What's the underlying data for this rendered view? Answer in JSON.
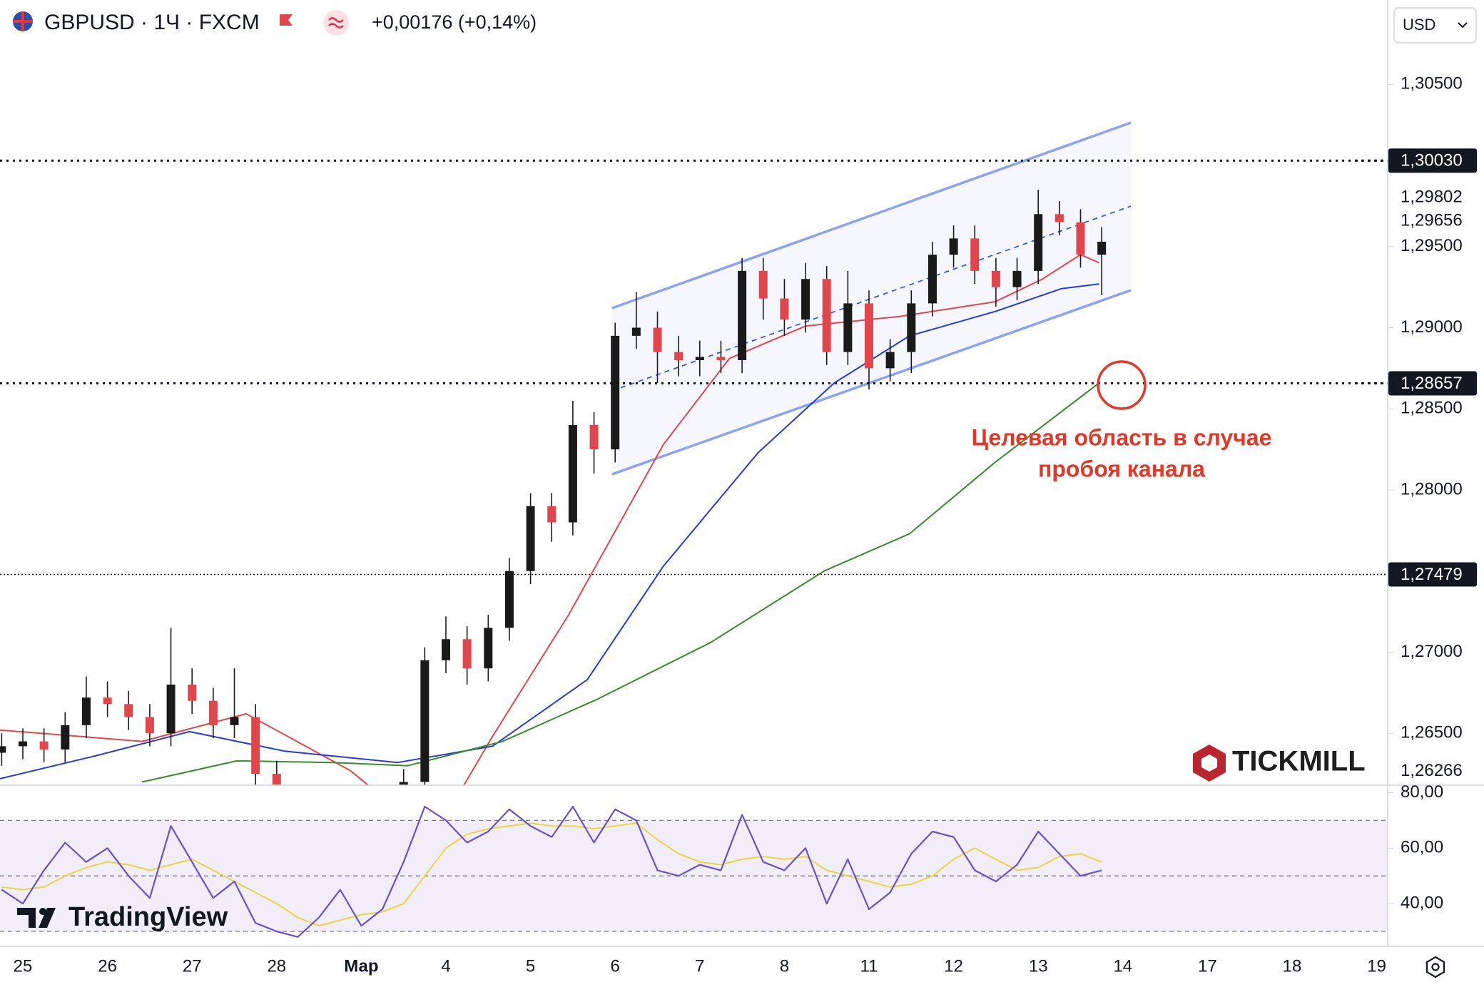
{
  "chart_data": {
    "type": "candlestick",
    "title": "GBPUSD · 1Ч · FXCM",
    "subtitle": "+0,00176 (+0,14%)",
    "currency": "USD",
    "annotation": [
      "Целевая область в случае",
      "пробоя канала"
    ],
    "watermarks": [
      "TradingView",
      "TICKMILL"
    ],
    "categories": [
      "25",
      "26",
      "27",
      "28",
      "Мар",
      "4",
      "5",
      "6",
      "7",
      "8",
      "11",
      "12",
      "13",
      "14",
      "17",
      "18",
      "19"
    ],
    "ylim": [
      1.2618,
      1.3102
    ],
    "yticks": [
      {
        "value": 1.305,
        "label": "1,30500"
      },
      {
        "value": 1.295,
        "label": "1,29500"
      },
      {
        "value": 1.29,
        "label": "1,29000"
      },
      {
        "value": 1.285,
        "label": "1,28500"
      },
      {
        "value": 1.28,
        "label": "1,28000"
      },
      {
        "value": 1.27,
        "label": "1,27000"
      },
      {
        "value": 1.265,
        "label": "1,26500"
      }
    ],
    "grid": false,
    "price_labels": [
      {
        "value": 1.29802,
        "label": "1,29802"
      },
      {
        "value": 1.29656,
        "label": "1,29656"
      },
      {
        "value": 1.26266,
        "label": "1,26266"
      }
    ],
    "levels": [
      {
        "value": 1.3003,
        "label": "1,30030"
      },
      {
        "value": 1.28657,
        "label": "1,28657"
      },
      {
        "value": 1.27479,
        "label": "1,27479"
      }
    ],
    "up_color": "#1a1a1a",
    "down_color": "#e0474c",
    "candles": {
      "x": [
        -0.25,
        0,
        0.25,
        0.5,
        0.75,
        1,
        1.25,
        1.5,
        1.75,
        2,
        2.25,
        2.5,
        2.75,
        3,
        3.25,
        3.5,
        3.75,
        4,
        4.25,
        4.5,
        4.75,
        5,
        5.25,
        5.5,
        5.75,
        6,
        6.25,
        6.5,
        6.75,
        7,
        7.25,
        7.5,
        7.75,
        8,
        8.25,
        8.5,
        8.75,
        9,
        9.25,
        9.5,
        9.75,
        10,
        10.25,
        10.5,
        10.75,
        11,
        11.25,
        11.5,
        11.75,
        12,
        12.25,
        12.5,
        12.75
      ],
      "open": [
        1.2638,
        1.2642,
        1.2645,
        1.264,
        1.2655,
        1.2672,
        1.2668,
        1.266,
        1.265,
        1.268,
        1.267,
        1.2655,
        1.266,
        1.2625,
        1.2605,
        1.2595,
        1.259,
        1.2588,
        1.2592,
        1.2598,
        1.262,
        1.2695,
        1.2708,
        1.269,
        1.2715,
        1.275,
        1.279,
        1.278,
        1.284,
        1.2825,
        1.2895,
        1.29,
        1.2885,
        1.288,
        1.2882,
        1.288,
        1.2935,
        1.2918,
        1.2905,
        1.293,
        1.2885,
        1.2915,
        1.2875,
        1.2885,
        1.2915,
        1.2945,
        1.2955,
        1.2935,
        1.2925,
        1.2935,
        1.297,
        1.2965,
        1.2945
      ],
      "high": [
        1.265,
        1.2653,
        1.2653,
        1.2663,
        1.2685,
        1.2682,
        1.2676,
        1.2668,
        1.2715,
        1.269,
        1.2678,
        1.269,
        1.2668,
        1.2633,
        1.2613,
        1.2603,
        1.2598,
        1.26,
        1.2606,
        1.2628,
        1.2703,
        1.2722,
        1.2716,
        1.2723,
        1.2758,
        1.2798,
        1.2798,
        1.2855,
        1.2848,
        1.2903,
        1.2922,
        1.291,
        1.2895,
        1.2892,
        1.2892,
        1.2943,
        1.2943,
        1.293,
        1.294,
        1.2938,
        1.2935,
        1.2923,
        1.2893,
        1.2923,
        1.2953,
        1.2963,
        1.2963,
        1.2943,
        1.2943,
        1.2985,
        1.2978,
        1.2973,
        1.2962
      ],
      "low": [
        1.263,
        1.2634,
        1.2632,
        1.2632,
        1.2647,
        1.266,
        1.2652,
        1.2642,
        1.2642,
        1.2662,
        1.2647,
        1.2647,
        1.2617,
        1.2597,
        1.2587,
        1.2582,
        1.258,
        1.258,
        1.2584,
        1.259,
        1.2612,
        1.2687,
        1.268,
        1.2682,
        1.2707,
        1.2742,
        1.2768,
        1.2772,
        1.281,
        1.2817,
        1.2887,
        1.2866,
        1.287,
        1.287,
        1.2872,
        1.2872,
        1.2905,
        1.2895,
        1.2897,
        1.2877,
        1.2877,
        1.2862,
        1.2867,
        1.2872,
        1.2907,
        1.2937,
        1.2927,
        1.2913,
        1.2917,
        1.2927,
        1.2957,
        1.2937,
        1.292
      ],
      "close": [
        1.2642,
        1.2645,
        1.264,
        1.2655,
        1.2672,
        1.2668,
        1.266,
        1.265,
        1.268,
        1.267,
        1.2655,
        1.266,
        1.2625,
        1.2605,
        1.2595,
        1.259,
        1.2588,
        1.2592,
        1.2598,
        1.262,
        1.2695,
        1.2708,
        1.269,
        1.2715,
        1.275,
        1.279,
        1.278,
        1.284,
        1.2825,
        1.2895,
        1.29,
        1.2885,
        1.288,
        1.2882,
        1.288,
        1.2935,
        1.2918,
        1.2905,
        1.293,
        1.2885,
        1.2915,
        1.2875,
        1.2885,
        1.2915,
        1.2945,
        1.2955,
        1.2935,
        1.2925,
        1.2935,
        1.297,
        1.2965,
        1.2945,
        1.2953
      ]
    },
    "series": [
      {
        "color": "#e0474c",
        "x": [
          -0.27,
          1.41,
          2.64,
          3.87,
          4.5,
          5.1,
          5.55,
          6.45,
          7.57,
          8.35,
          9.25,
          10.37,
          11.49,
          12.05,
          12.5,
          12.72
        ],
        "values": [
          1.2652,
          1.2645,
          1.2662,
          1.2627,
          1.26,
          1.2608,
          1.2648,
          1.2723,
          1.2828,
          1.2881,
          1.2901,
          1.2907,
          1.2916,
          1.293,
          1.2945,
          1.294
        ]
      },
      {
        "color": "#2a3ad8",
        "x": [
          -0.27,
          0.85,
          1.97,
          3.09,
          4.43,
          5.55,
          6.67,
          7.57,
          8.69,
          9.59,
          10.48,
          11.49,
          12.27,
          12.72
        ],
        "values": [
          1.2622,
          1.2636,
          1.2651,
          1.2639,
          1.2632,
          1.2642,
          1.2683,
          1.2753,
          1.2823,
          1.2866,
          1.2895,
          1.291,
          1.2924,
          1.2927
        ]
      },
      {
        "color": "#3a8a2e",
        "x": [
          1.41,
          2.53,
          3.65,
          4.55,
          5.67,
          6.79,
          8.13,
          9.47,
          10.48,
          11.49,
          12.72
        ],
        "values": [
          1.262,
          1.2633,
          1.2632,
          1.263,
          1.2645,
          1.2671,
          1.2706,
          1.275,
          1.2773,
          1.2817,
          1.2866
        ]
      }
    ],
    "rsi": {
      "ylim": [
        24.6,
        82.7
      ],
      "yticks": [
        {
          "value": 80,
          "label": "80,00"
        },
        {
          "value": 60,
          "label": "60,00"
        },
        {
          "value": 40,
          "label": "40,00"
        }
      ],
      "band": [
        30,
        70
      ],
      "levels": [
        70,
        50,
        30
      ],
      "color": "#6a4fd0",
      "ma_color": "#e8d640",
      "values": [
        45,
        40,
        52,
        62,
        55,
        60,
        50,
        42,
        68,
        55,
        42,
        48,
        33,
        30,
        28,
        35,
        45,
        32,
        38,
        55,
        75,
        70,
        62,
        66,
        74,
        68,
        64,
        75,
        62,
        74,
        70,
        52,
        50,
        54,
        52,
        72,
        55,
        52,
        60,
        40,
        56,
        38,
        44,
        58,
        66,
        64,
        52,
        48,
        54,
        66,
        58,
        50,
        52
      ],
      "ma": [
        46,
        45,
        46,
        50,
        53,
        55,
        54,
        52,
        54,
        56,
        52,
        48,
        44,
        40,
        35,
        32,
        34,
        36,
        37,
        40,
        50,
        60,
        65,
        67,
        68,
        69,
        68,
        68,
        67,
        68,
        69,
        63,
        58,
        55,
        54,
        56,
        57,
        56,
        57,
        52,
        50,
        48,
        46,
        47,
        50,
        56,
        60,
        56,
        52,
        53,
        57,
        58,
        55
      ]
    }
  }
}
